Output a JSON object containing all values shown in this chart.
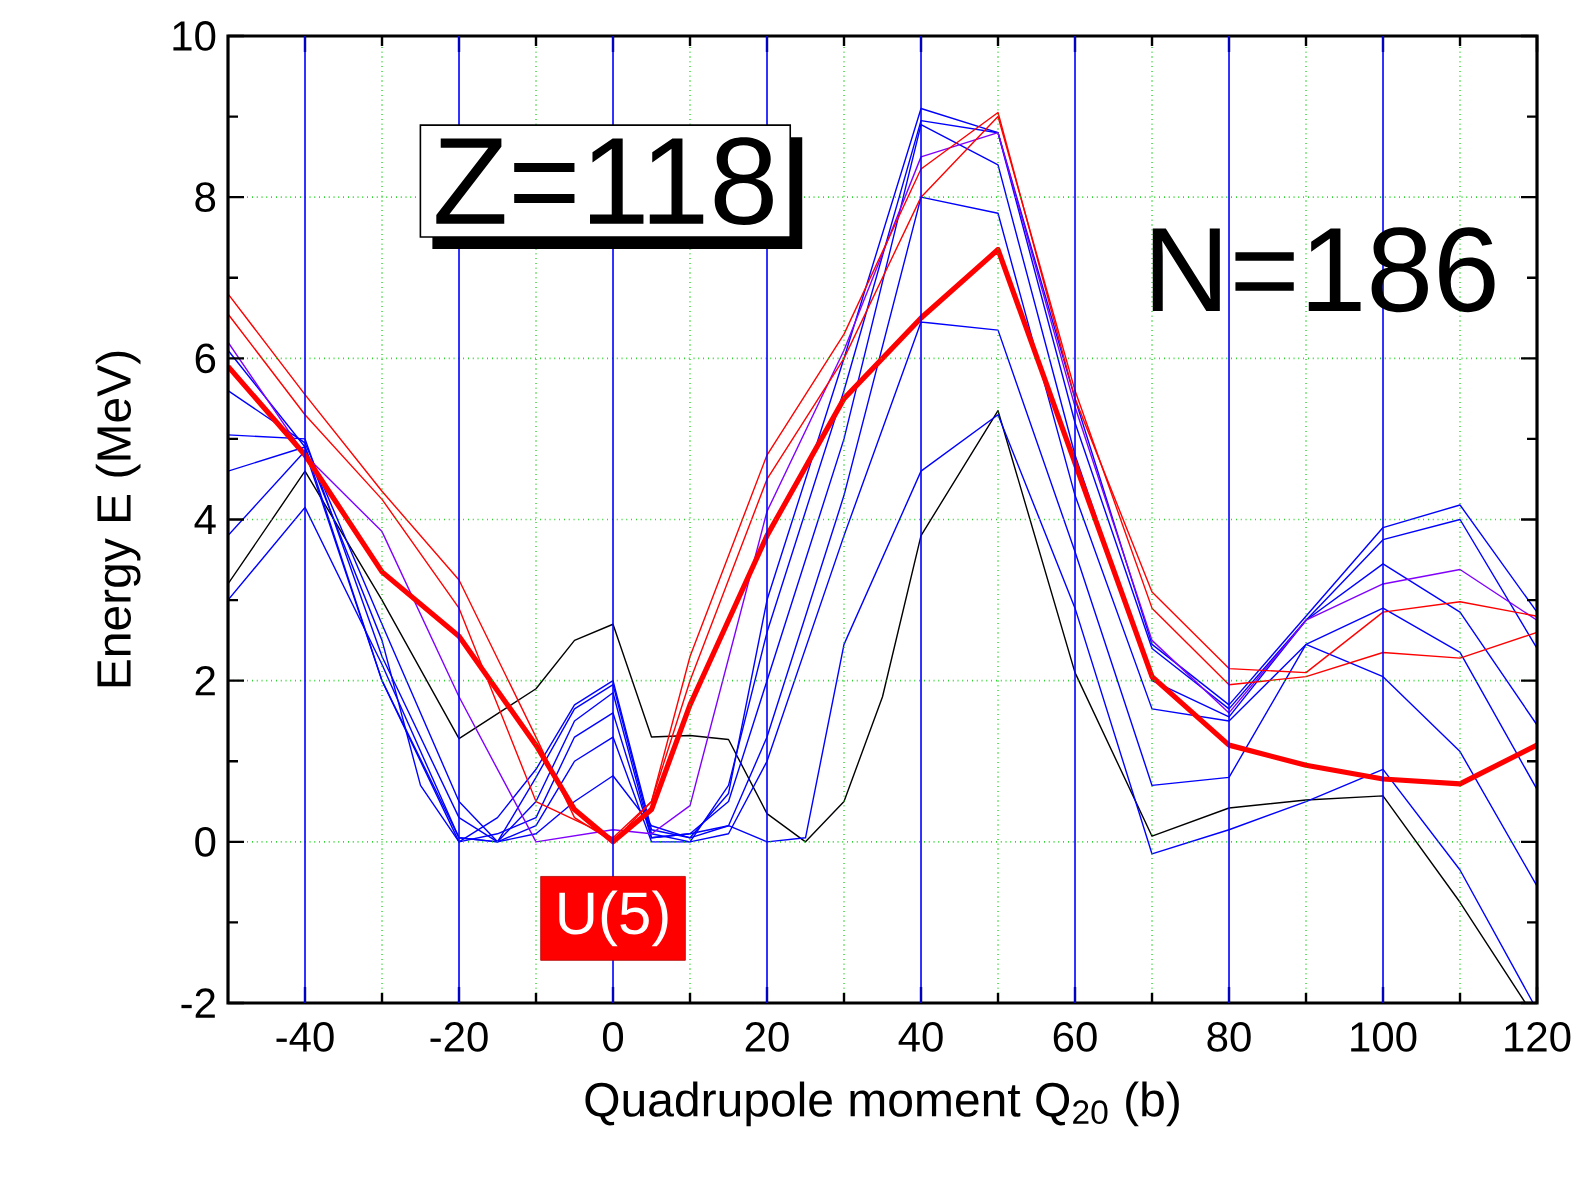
{
  "chart_data": {
    "type": "line",
    "xlabel": "Quadrupole moment Q$_{20}$ (b)",
    "ylabel": "Energy E (MeV)",
    "xlim": [
      -50,
      120
    ],
    "ylim": [
      -2,
      10
    ],
    "xticks": [
      -40,
      -20,
      0,
      20,
      40,
      60,
      80,
      100,
      120
    ],
    "yticks": [
      -2,
      0,
      2,
      4,
      6,
      8,
      10
    ],
    "grid": true,
    "marker": "none",
    "line_style": "solid",
    "annotations": [
      "Z=118",
      "N=186",
      "U(5)"
    ],
    "series": [
      {
        "color": "#000000",
        "x": [
          -50,
          -40,
          -30,
          -20,
          -10,
          -5,
          0,
          5,
          10,
          15,
          20,
          25,
          30,
          35,
          40,
          50,
          60,
          70,
          80,
          90,
          100,
          110,
          118.5
        ],
        "values": [
          3.2,
          4.6,
          3.0,
          1.28,
          1.9,
          2.5,
          2.7,
          1.3,
          1.32,
          1.27,
          0.35,
          0.0,
          0.5,
          1.8,
          3.8,
          5.35,
          2.1,
          0.07,
          0.42,
          0.52,
          0.57,
          -0.75,
          -2.0
        ]
      },
      {
        "color": "#0000ff",
        "x": [
          -50,
          -40,
          -30,
          -25,
          -20,
          -15,
          -10,
          -5,
          0,
          5,
          10,
          15,
          20,
          30,
          40,
          50,
          60,
          70,
          80,
          90,
          100,
          110,
          120
        ],
        "values": [
          6.1,
          4.9,
          2.5,
          0.7,
          0.0,
          0.3,
          0.9,
          1.7,
          2.0,
          0.15,
          0.05,
          0.6,
          3.0,
          6.0,
          9.1,
          8.8,
          5.5,
          2.45,
          1.7,
          2.8,
          3.9,
          4.18,
          2.85
        ]
      },
      {
        "color": "#0000ff",
        "x": [
          -50,
          -40,
          -30,
          -20,
          -15,
          -10,
          -5,
          0,
          5,
          10,
          15,
          20,
          30,
          40,
          50,
          60,
          70,
          80,
          90,
          100,
          110,
          120
        ],
        "values": [
          5.6,
          4.95,
          2.7,
          0.5,
          0.0,
          0.8,
          1.65,
          1.95,
          0.1,
          0.0,
          0.7,
          2.6,
          5.6,
          8.95,
          8.8,
          5.2,
          2.4,
          1.65,
          2.75,
          3.75,
          4.0,
          2.4
        ]
      },
      {
        "color": "#0000ff",
        "x": [
          -50,
          -40,
          -30,
          -20,
          -15,
          -10,
          -5,
          0,
          5,
          10,
          15,
          20,
          30,
          40,
          50,
          60,
          70,
          80,
          90,
          100,
          110,
          120
        ],
        "values": [
          5.05,
          5.0,
          2.3,
          0.3,
          0.0,
          0.5,
          1.5,
          1.85,
          0.05,
          0.1,
          0.5,
          2.0,
          5.0,
          8.9,
          8.4,
          4.8,
          2.0,
          1.55,
          2.75,
          3.45,
          2.85,
          1.45
        ]
      },
      {
        "color": "#0000ff",
        "x": [
          -50,
          -40,
          -30,
          -20,
          -15,
          -10,
          -5,
          0,
          5,
          10,
          15,
          20,
          30,
          40,
          50,
          60,
          70,
          80,
          90,
          100,
          110,
          120
        ],
        "values": [
          4.6,
          4.9,
          2.0,
          0.0,
          0.1,
          0.3,
          1.3,
          1.6,
          0.05,
          0.1,
          0.2,
          1.3,
          4.3,
          8.0,
          7.8,
          4.3,
          1.65,
          1.5,
          2.45,
          2.9,
          2.35,
          0.65
        ]
      },
      {
        "color": "#0000ff",
        "x": [
          -50,
          -40,
          -30,
          -20,
          -15,
          -10,
          -5,
          0,
          5,
          10,
          15,
          20,
          30,
          40,
          50,
          60,
          70,
          80,
          90,
          100,
          110,
          120
        ],
        "values": [
          3.8,
          4.85,
          2.0,
          0.05,
          0.0,
          0.2,
          1.0,
          1.3,
          0.0,
          0.0,
          0.1,
          1.0,
          3.8,
          6.45,
          6.35,
          3.6,
          0.7,
          0.8,
          2.45,
          2.05,
          1.12,
          -0.55
        ]
      },
      {
        "color": "#0000ff",
        "x": [
          -50,
          -40,
          -30,
          -20,
          -15,
          -10,
          -5,
          0,
          5,
          10,
          15,
          20,
          25,
          30,
          40,
          50,
          60,
          70,
          80,
          90,
          100,
          110,
          119.5
        ],
        "values": [
          3.0,
          4.15,
          2.2,
          0.05,
          0.0,
          0.1,
          0.5,
          0.82,
          0.2,
          0.05,
          0.2,
          0.0,
          0.05,
          2.45,
          4.6,
          5.3,
          2.9,
          -0.15,
          0.15,
          0.5,
          0.9,
          -0.35,
          -2.0
        ]
      },
      {
        "color": "#8000ff",
        "x": [
          -50,
          -40,
          -30,
          -20,
          -10,
          0,
          5,
          10,
          20,
          30,
          40,
          50,
          60,
          70,
          80,
          90,
          100,
          110,
          120
        ],
        "values": [
          6.2,
          4.8,
          3.85,
          1.8,
          0.0,
          0.15,
          0.1,
          0.45,
          4.1,
          6.1,
          8.5,
          8.8,
          5.4,
          2.5,
          1.6,
          2.75,
          3.2,
          3.38,
          2.75
        ]
      },
      {
        "color": "#ff0000",
        "x": [
          -50,
          -40,
          -30,
          -20,
          -10,
          -5,
          0,
          5,
          10,
          20,
          30,
          40,
          50,
          60,
          70,
          80,
          90,
          100,
          110,
          120
        ],
        "values": [
          6.8,
          5.55,
          4.35,
          3.25,
          1.3,
          0.3,
          0.0,
          0.5,
          2.3,
          4.8,
          6.3,
          8.35,
          9.05,
          5.5,
          3.1,
          2.15,
          2.1,
          2.85,
          2.98,
          2.8
        ]
      },
      {
        "color": "#ff0000",
        "x": [
          -50,
          -40,
          -30,
          -20,
          -10,
          0,
          5,
          10,
          20,
          30,
          40,
          50,
          60,
          70,
          80,
          90,
          100,
          110,
          120
        ],
        "values": [
          6.55,
          5.3,
          4.25,
          2.9,
          0.5,
          0.05,
          0.5,
          2.0,
          4.5,
          6.0,
          8.0,
          9.0,
          5.6,
          2.9,
          1.95,
          2.05,
          2.35,
          2.28,
          2.6
        ]
      },
      {
        "color": "#ff0000",
        "x": [
          -50,
          -40,
          -30,
          -20,
          -10,
          -5,
          0,
          5,
          10,
          20,
          30,
          40,
          50,
          60,
          70,
          80,
          90,
          100,
          110,
          120
        ],
        "values": [
          5.9,
          4.8,
          3.35,
          2.55,
          1.2,
          0.4,
          0.0,
          0.4,
          1.7,
          3.8,
          5.5,
          6.5,
          7.35,
          4.7,
          2.05,
          1.2,
          0.95,
          0.78,
          0.72,
          1.2
        ]
      }
    ]
  }
}
